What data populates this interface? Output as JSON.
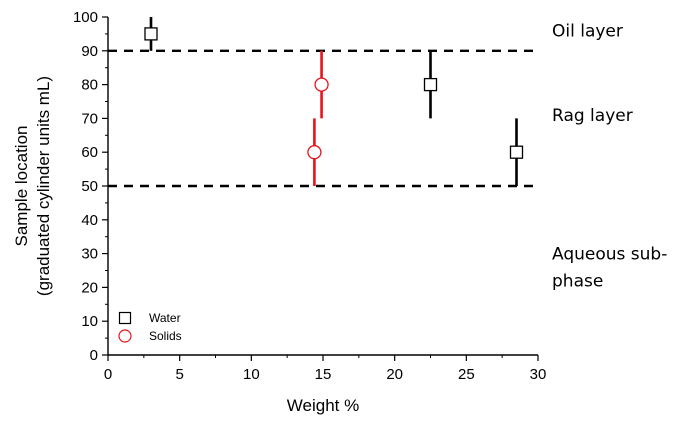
{
  "chart_data": {
    "type": "scatter",
    "xlabel": "Weight %",
    "ylabel_lines": [
      "Sample location",
      "(graduated cylinder units mL)"
    ],
    "xlim": [
      0,
      30
    ],
    "ylim": [
      0,
      100
    ],
    "x_ticks": [
      0,
      5,
      10,
      15,
      20,
      25,
      30
    ],
    "y_ticks": [
      0,
      10,
      20,
      30,
      40,
      50,
      60,
      70,
      80,
      90,
      100
    ],
    "grid": false,
    "legend_position": "bottom-left",
    "series": [
      {
        "name": "Water",
        "marker": "open-square",
        "color": "#000000",
        "points": [
          {
            "x": 3.0,
            "y": 95,
            "err_low": 90,
            "err_high": 100
          },
          {
            "x": 22.5,
            "y": 80,
            "err_low": 70,
            "err_high": 90
          },
          {
            "x": 28.5,
            "y": 60,
            "err_low": 50,
            "err_high": 70
          }
        ]
      },
      {
        "name": "Solids",
        "marker": "open-circle",
        "color": "#e8141c",
        "points": [
          {
            "x": 14.9,
            "y": 80,
            "err_low": 70,
            "err_high": 90
          },
          {
            "x": 14.4,
            "y": 60,
            "err_low": 50,
            "err_high": 70
          }
        ]
      }
    ],
    "reference_lines": [
      {
        "axis": "y",
        "value": 90,
        "style": "dashed"
      },
      {
        "axis": "y",
        "value": 50,
        "style": "dashed"
      }
    ],
    "region_labels": [
      {
        "lines": [
          "Oil layer"
        ],
        "y": 96
      },
      {
        "lines": [
          "Rag layer"
        ],
        "y": 71
      },
      {
        "lines": [
          "Aqueous sub-",
          "phase"
        ],
        "y": 30
      }
    ]
  }
}
